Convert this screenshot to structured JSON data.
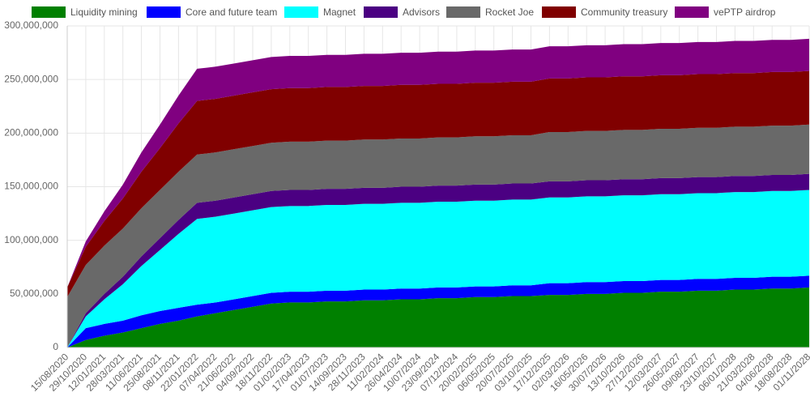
{
  "chart_data": {
    "type": "stacked-area",
    "categories": [
      "15/08/2020",
      "29/10/2020",
      "12/01/2021",
      "28/03/2021",
      "11/06/2021",
      "25/08/2021",
      "08/11/2021",
      "22/01/2022",
      "07/04/2022",
      "21/06/2022",
      "04/09/2022",
      "18/11/2022",
      "01/02/2023",
      "17/04/2023",
      "01/07/2023",
      "14/09/2023",
      "28/11/2023",
      "11/02/2024",
      "26/04/2024",
      "10/07/2024",
      "23/09/2024",
      "07/12/2024",
      "20/02/2025",
      "06/05/2025",
      "20/07/2025",
      "03/10/2025",
      "17/12/2025",
      "02/03/2026",
      "16/05/2026",
      "30/07/2026",
      "13/10/2026",
      "27/12/2026",
      "12/03/2027",
      "26/05/2027",
      "09/08/2027",
      "23/10/2027",
      "06/01/2028",
      "21/03/2028",
      "04/06/2028",
      "18/08/2028",
      "01/11/2028"
    ],
    "series": [
      {
        "name": "Liquidity mining",
        "color": "#008000",
        "values": [
          0,
          7000000,
          11000000,
          14000000,
          18000000,
          22000000,
          25000000,
          29000000,
          32000000,
          35000000,
          38000000,
          41000000,
          42000000,
          42000000,
          43000000,
          43000000,
          44000000,
          44000000,
          45000000,
          45000000,
          46000000,
          46000000,
          47000000,
          47000000,
          48000000,
          48000000,
          49000000,
          49000000,
          50000000,
          50000000,
          51000000,
          51000000,
          52000000,
          52000000,
          53000000,
          53000000,
          54000000,
          54000000,
          55000000,
          55000000,
          56000000
        ]
      },
      {
        "name": "Core and future team",
        "color": "#0000ff",
        "values": [
          0,
          11000000,
          11000000,
          11000000,
          12000000,
          12000000,
          12000000,
          11000000,
          10000000,
          10000000,
          10000000,
          10000000,
          10000000,
          10000000,
          10000000,
          10000000,
          10000000,
          10000000,
          10000000,
          10000000,
          10000000,
          10000000,
          10000000,
          10000000,
          10000000,
          10000000,
          11000000,
          11000000,
          11000000,
          11000000,
          11000000,
          11000000,
          11000000,
          11000000,
          11000000,
          11000000,
          11000000,
          11000000,
          11000000,
          11000000,
          11000000
        ]
      },
      {
        "name": "Magnet",
        "color": "#00ffff",
        "values": [
          0,
          11000000,
          23000000,
          34000000,
          46000000,
          57000000,
          69000000,
          80000000,
          80000000,
          80000000,
          80000000,
          80000000,
          80000000,
          80000000,
          80000000,
          80000000,
          80000000,
          80000000,
          80000000,
          80000000,
          80000000,
          80000000,
          80000000,
          80000000,
          80000000,
          80000000,
          80000000,
          80000000,
          80000000,
          80000000,
          80000000,
          80000000,
          80000000,
          80000000,
          80000000,
          80000000,
          80000000,
          80000000,
          80000000,
          80000000,
          80000000
        ]
      },
      {
        "name": "Advisors",
        "color": "#4b0082",
        "values": [
          0,
          3000000,
          5000000,
          7000000,
          9000000,
          11000000,
          13000000,
          15000000,
          15000000,
          15000000,
          15000000,
          15000000,
          15000000,
          15000000,
          15000000,
          15000000,
          15000000,
          15000000,
          15000000,
          15000000,
          15000000,
          15000000,
          15000000,
          15000000,
          15000000,
          15000000,
          15000000,
          15000000,
          15000000,
          15000000,
          15000000,
          15000000,
          15000000,
          15000000,
          15000000,
          15000000,
          15000000,
          15000000,
          15000000,
          15000000,
          15000000
        ]
      },
      {
        "name": "Rocket Joe",
        "color": "#696969",
        "values": [
          47000000,
          45000000,
          45000000,
          45000000,
          45000000,
          45000000,
          45000000,
          45000000,
          45000000,
          45000000,
          45000000,
          45000000,
          45000000,
          45000000,
          45000000,
          45000000,
          45000000,
          45000000,
          45000000,
          45000000,
          45000000,
          45000000,
          45000000,
          45000000,
          45000000,
          45000000,
          46000000,
          46000000,
          46000000,
          46000000,
          46000000,
          46000000,
          46000000,
          46000000,
          46000000,
          46000000,
          46000000,
          46000000,
          46000000,
          46000000,
          46000000
        ]
      },
      {
        "name": "Community treasury",
        "color": "#800000",
        "values": [
          9000000,
          17000000,
          23000000,
          28000000,
          34000000,
          39000000,
          45000000,
          50000000,
          50000000,
          50000000,
          50000000,
          50000000,
          50000000,
          50000000,
          50000000,
          50000000,
          50000000,
          50000000,
          50000000,
          50000000,
          50000000,
          50000000,
          50000000,
          50000000,
          50000000,
          50000000,
          50000000,
          50000000,
          50000000,
          50000000,
          50000000,
          50000000,
          50000000,
          50000000,
          50000000,
          50000000,
          50000000,
          50000000,
          50000000,
          50000000,
          50000000
        ]
      },
      {
        "name": "vePTP airdrop",
        "color": "#800080",
        "values": [
          0,
          5000000,
          9000000,
          13000000,
          18000000,
          22000000,
          26000000,
          30000000,
          30000000,
          30000000,
          30000000,
          30000000,
          30000000,
          30000000,
          30000000,
          30000000,
          30000000,
          30000000,
          30000000,
          30000000,
          30000000,
          30000000,
          30000000,
          30000000,
          30000000,
          30000000,
          30000000,
          30000000,
          30000000,
          30000000,
          30000000,
          30000000,
          30000000,
          30000000,
          30000000,
          30000000,
          30000000,
          30000000,
          30000000,
          30000000,
          30000000
        ]
      }
    ],
    "ylim": [
      0,
      300000000
    ],
    "yticks": [
      0,
      {
        "value": 50000000,
        "label": "50,000,000"
      },
      {
        "value": 100000000,
        "label": "100,000,000"
      },
      {
        "value": 150000000,
        "label": "150,000,000"
      },
      {
        "value": 200000000,
        "label": "200,000,000"
      },
      {
        "value": 250000000,
        "label": "250,000,000"
      },
      {
        "value": 300000000,
        "label": "300,000,000"
      }
    ],
    "grid": true
  }
}
